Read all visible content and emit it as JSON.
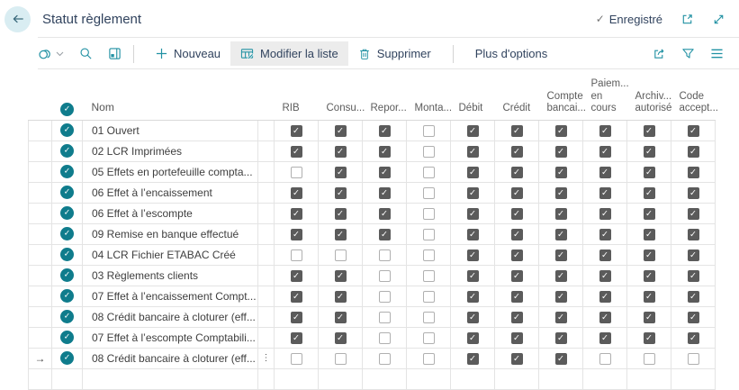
{
  "page": {
    "title": "Statut règlement",
    "saved": "Enregistré"
  },
  "toolbar": {
    "new": "Nouveau",
    "edit_list": "Modifier la liste",
    "delete": "Supprimer",
    "more_options": "Plus d'options"
  },
  "table": {
    "name_header": "Nom",
    "check_columns": [
      "RIB",
      "Consu...",
      "Repor...",
      "Monta...",
      "Débit",
      "Crédit",
      "Compte bancai...",
      "Paiem... en cours",
      "Archiv... autorisé",
      "Code accept..."
    ],
    "rows": [
      {
        "name": "01 Ouvert",
        "checks": [
          1,
          1,
          1,
          0,
          1,
          1,
          1,
          1,
          1,
          1
        ],
        "current": false
      },
      {
        "name": "02 LCR Imprimées",
        "checks": [
          1,
          1,
          1,
          0,
          1,
          1,
          1,
          1,
          1,
          1
        ],
        "current": false
      },
      {
        "name": "05 Effets en portefeuille compta...",
        "checks": [
          0,
          1,
          1,
          0,
          1,
          1,
          1,
          1,
          1,
          1
        ],
        "current": false
      },
      {
        "name": "06 Effet à l’encaissement",
        "checks": [
          1,
          1,
          1,
          0,
          1,
          1,
          1,
          1,
          1,
          1
        ],
        "current": false
      },
      {
        "name": "06 Effet à l’escompte",
        "checks": [
          1,
          1,
          1,
          0,
          1,
          1,
          1,
          1,
          1,
          1
        ],
        "current": false
      },
      {
        "name": "09 Remise en banque effectué",
        "checks": [
          1,
          1,
          1,
          0,
          1,
          1,
          1,
          1,
          1,
          1
        ],
        "current": false
      },
      {
        "name": "04 LCR Fichier ETABAC Créé",
        "checks": [
          0,
          0,
          0,
          0,
          1,
          1,
          1,
          1,
          1,
          1
        ],
        "current": false
      },
      {
        "name": "03 Règlements clients",
        "checks": [
          1,
          1,
          0,
          0,
          1,
          1,
          1,
          1,
          1,
          1
        ],
        "current": false
      },
      {
        "name": "07 Effet à l’encaissement Compt...",
        "checks": [
          1,
          1,
          0,
          0,
          1,
          1,
          1,
          1,
          1,
          1
        ],
        "current": false
      },
      {
        "name": "08 Crédit bancaire à cloturer (eff...",
        "checks": [
          1,
          1,
          0,
          0,
          1,
          1,
          1,
          1,
          1,
          1
        ],
        "current": false
      },
      {
        "name": "07 Effet à l’escompte Comptabili...",
        "checks": [
          1,
          1,
          0,
          0,
          1,
          1,
          1,
          1,
          1,
          1
        ],
        "current": false
      },
      {
        "name": "08 Crédit bancaire à cloturer (eff...",
        "checks": [
          0,
          0,
          0,
          0,
          1,
          1,
          1,
          0,
          0,
          0
        ],
        "current": true
      }
    ]
  },
  "colors": {
    "accent_teal": "#2191a3",
    "select_circle": "#0f7c8c",
    "checkbox_checked": "#5b5b5b",
    "back_circle_bg": "#d9edf2",
    "active_button_bg": "#ececec",
    "grid_line": "#e4e4e4"
  }
}
